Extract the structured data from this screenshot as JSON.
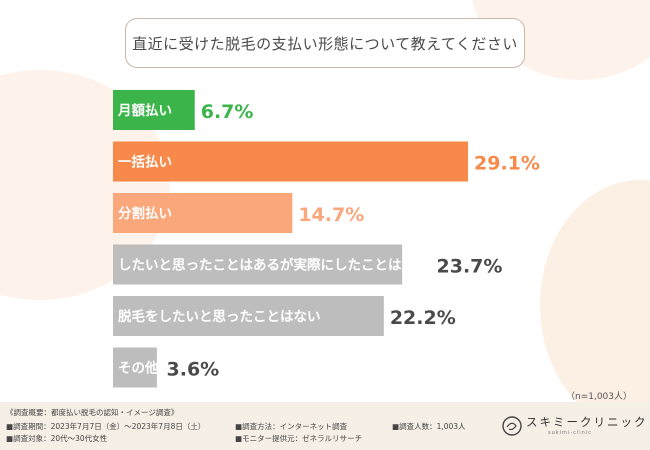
{
  "title": "直近に受けた脱毛の支払い形態について教えてください",
  "sample_note": "（n=1,003人）",
  "chart_data": {
    "type": "bar",
    "orientation": "horizontal",
    "title": "直近に受けた脱毛の支払い形態について教えてください",
    "categories": [
      "月額払い",
      "一括払い",
      "分割払い",
      "したいと思ったことはあるが実際にしたことはない",
      "脱毛をしたいと思ったことはない",
      "その他"
    ],
    "values": [
      6.7,
      29.1,
      14.7,
      23.7,
      22.2,
      3.6
    ],
    "value_labels": [
      "6.7%",
      "29.1%",
      "14.7%",
      "23.7%",
      "22.2%",
      "3.6%"
    ],
    "unit": "%",
    "colors": [
      "#3bb54a",
      "#f78a4b",
      "#f9a77b",
      "#bdbdbd",
      "#bdbdbd",
      "#bdbdbd"
    ],
    "label_colors": [
      "#3bb54a",
      "#f78a4b",
      "#f9a77b",
      "#4a4a4a",
      "#4a4a4a",
      "#4a4a4a"
    ]
  },
  "footer": {
    "survey_title": "《調査概要：都度払い脱毛の認知・イメージ調査》",
    "period": "■調査期間：2023年7月7日（金）〜2023年7月8日（土）",
    "target": "■調査対象：20代〜30代女性",
    "method": "■調査方法：インターネット調査",
    "provider": "■モニター提供元：ゼネラルリサーチ",
    "count": "■調査人数：1,003人",
    "logo_text": "スキミークリニック",
    "logo_sub": "sukimi-clinic"
  }
}
